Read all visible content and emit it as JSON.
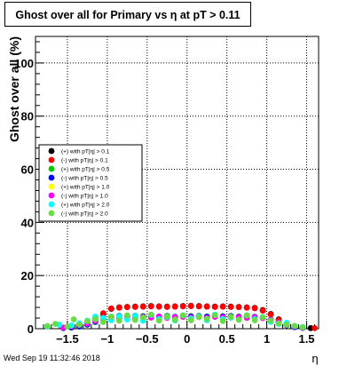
{
  "title": "Ghost over all for Primary vs   η at pT  > 0.11",
  "timestamp": "Wed Sep 19 11:32:46 2018",
  "chart_data": {
    "type": "scatter",
    "title": "Ghost over all for Primary vs   η at pT  > 0.11",
    "xlabel": "η",
    "ylabel": "Ghost over all (%)",
    "xlim": [
      -1.9,
      1.65
    ],
    "ylim": [
      0,
      110
    ],
    "x_ticks": [
      -1.5,
      -1,
      -0.5,
      0,
      0.5,
      1,
      1.5
    ],
    "x_tick_labels": [
      "−1.5",
      "−1",
      "−0.5",
      "0",
      "0.5",
      "1",
      "1.5"
    ],
    "y_ticks": [
      0,
      20,
      40,
      60,
      80,
      100
    ],
    "y_tick_labels": [
      "0",
      "20",
      "40",
      "60",
      "80",
      "100"
    ],
    "grid": true,
    "legend_position": "middle-left",
    "series": [
      {
        "name": "(+) with pT|η| > 0.1",
        "color": "#000000",
        "x": [
          -1.55,
          -1.45,
          -1.35,
          -1.25,
          -1.15,
          -1.05,
          -0.95,
          -0.85,
          -0.75,
          -0.65,
          -0.55,
          -0.45,
          -0.35,
          -0.25,
          -0.15,
          -0.05,
          0.05,
          0.15,
          0.25,
          0.35,
          0.45,
          0.55,
          0.65,
          0.75,
          0.85,
          0.95,
          1.05,
          1.15,
          1.25,
          1.35,
          1.45,
          1.55
        ],
        "y": [
          0.2,
          0.5,
          1.0,
          2.0,
          3.5,
          5.5,
          7.5,
          8.0,
          8.2,
          8.3,
          8.4,
          8.5,
          8.4,
          8.3,
          8.4,
          8.5,
          8.6,
          8.5,
          8.4,
          8.3,
          8.4,
          8.3,
          8.2,
          8.0,
          7.8,
          7.0,
          5.5,
          3.5,
          2.0,
          1.0,
          0.5,
          0.2
        ]
      },
      {
        "name": "(-) with pT|η| > 0.1",
        "color": "#ff0000",
        "x": [
          -1.55,
          -1.45,
          -1.35,
          -1.25,
          -1.15,
          -1.05,
          -0.95,
          -0.85,
          -0.75,
          -0.65,
          -0.55,
          -0.45,
          -0.35,
          -0.25,
          -0.15,
          -0.05,
          0.05,
          0.15,
          0.25,
          0.35,
          0.45,
          0.55,
          0.65,
          0.75,
          0.85,
          0.95,
          1.05,
          1.15,
          1.25,
          1.35,
          1.45,
          1.6
        ],
        "y": [
          0.3,
          0.6,
          1.2,
          2.2,
          3.8,
          5.8,
          7.6,
          7.9,
          8.1,
          8.2,
          8.3,
          8.4,
          8.3,
          8.2,
          8.3,
          8.4,
          8.5,
          8.4,
          8.3,
          8.2,
          8.3,
          8.2,
          8.1,
          7.9,
          7.7,
          6.8,
          5.3,
          3.3,
          1.8,
          0.9,
          0.4,
          0.2
        ]
      },
      {
        "name": "(+) with pT|η| > 0.5",
        "color": "#00cc00",
        "x": [
          -1.55,
          -1.45,
          -1.35,
          -1.25,
          -1.15,
          -1.05,
          -0.95,
          -0.85,
          -0.75,
          -0.65,
          -0.55,
          -0.45,
          -0.35,
          -0.25,
          -0.15,
          -0.05,
          0.05,
          0.15,
          0.25,
          0.35,
          0.45,
          0.55,
          0.65,
          0.75,
          0.85,
          0.95,
          1.05,
          1.15,
          1.25,
          1.35,
          1.45
        ],
        "y": [
          0.2,
          0.4,
          0.8,
          1.5,
          2.5,
          3.5,
          4.5,
          4.8,
          4.6,
          4.9,
          4.7,
          5.0,
          4.6,
          4.8,
          4.5,
          4.9,
          4.7,
          4.8,
          4.6,
          5.0,
          4.7,
          4.8,
          4.6,
          4.7,
          4.5,
          4.2,
          3.4,
          2.4,
          1.4,
          0.7,
          0.3
        ]
      },
      {
        "name": "(-) with pT|η| > 0.5",
        "color": "#0000ff",
        "x": [
          -1.55,
          -1.45,
          -1.35,
          -1.25,
          -1.15,
          -1.05,
          -0.95,
          -0.85,
          -0.75,
          -0.65,
          -0.55,
          -0.45,
          -0.35,
          -0.25,
          -0.15,
          -0.05,
          0.05,
          0.15,
          0.25,
          0.35,
          0.45,
          0.55,
          0.65,
          0.75,
          0.85,
          0.95,
          1.05,
          1.15,
          1.25,
          1.35,
          1.45
        ],
        "y": [
          0.3,
          0.5,
          0.9,
          1.6,
          2.6,
          3.6,
          4.4,
          4.7,
          4.5,
          4.8,
          4.6,
          4.9,
          4.5,
          4.7,
          4.4,
          4.8,
          4.6,
          4.7,
          4.5,
          4.9,
          4.6,
          4.7,
          4.5,
          4.6,
          4.4,
          4.1,
          3.3,
          2.3,
          1.3,
          0.6,
          0.3
        ]
      },
      {
        "name": "(+) with pT|η| > 1.0",
        "color": "#ffff00",
        "x": [
          -1.55,
          -1.45,
          -1.35,
          -1.25,
          -1.15,
          -1.05,
          -0.95,
          -0.85,
          -0.75,
          -0.65,
          -0.55,
          -0.45,
          -0.35,
          -0.25,
          -0.15,
          -0.05,
          0.05,
          0.15,
          0.25,
          0.35,
          0.45,
          0.55,
          0.65,
          0.75,
          0.85,
          0.95,
          1.05,
          1.15,
          1.25,
          1.35,
          1.45
        ],
        "y": [
          0.5,
          1.0,
          1.5,
          2.0,
          3.0,
          3.8,
          4.2,
          4.0,
          4.4,
          3.9,
          4.3,
          4.1,
          4.5,
          4.0,
          4.2,
          4.4,
          4.1,
          4.3,
          4.0,
          4.4,
          4.2,
          4.1,
          4.3,
          4.0,
          4.2,
          3.9,
          3.2,
          2.2,
          1.5,
          1.0,
          0.5
        ]
      },
      {
        "name": "(-) with pT|η| > 1.0",
        "color": "#ff00ff",
        "x": [
          -1.55,
          -1.45,
          -1.35,
          -1.25,
          -1.15,
          -1.05,
          -0.95,
          -0.85,
          -0.75,
          -0.65,
          -0.55,
          -0.45,
          -0.35,
          -0.25,
          -0.15,
          -0.05,
          0.05,
          0.15,
          0.25,
          0.35,
          0.45,
          0.55,
          0.65,
          0.75,
          0.85,
          0.95,
          1.05,
          1.15,
          1.25,
          1.35,
          1.45
        ],
        "y": [
          0.4,
          0.9,
          1.4,
          2.1,
          3.1,
          3.9,
          4.3,
          4.1,
          4.5,
          4.0,
          4.4,
          4.2,
          4.6,
          4.1,
          4.3,
          4.5,
          4.2,
          4.4,
          4.1,
          4.5,
          4.3,
          4.2,
          4.4,
          4.1,
          4.3,
          4.0,
          3.3,
          2.3,
          1.6,
          0.9,
          0.4
        ]
      },
      {
        "name": "(+) with pT|η| > 2.0",
        "color": "#00ffff",
        "x": [
          -1.75,
          -1.6,
          -1.45,
          -1.35,
          -1.25,
          -1.15,
          -1.05,
          -0.95,
          -0.85,
          -0.75,
          -0.65,
          -0.55,
          -0.45,
          -0.35,
          -0.25,
          -0.15,
          -0.05,
          0.05,
          0.15,
          0.25,
          0.35,
          0.45,
          0.55,
          0.65,
          0.75,
          0.85,
          0.95,
          1.05,
          1.15,
          1.25,
          1.35,
          1.45
        ],
        "y": [
          0.8,
          1.5,
          1.2,
          2.0,
          3.0,
          4.5,
          4.0,
          3.2,
          4.6,
          3.5,
          4.8,
          3.0,
          5.2,
          3.6,
          4.4,
          3.1,
          5.0,
          3.8,
          4.6,
          3.2,
          5.3,
          3.6,
          4.2,
          3.4,
          5.0,
          3.6,
          4.4,
          2.6,
          1.8,
          2.2,
          1.0,
          0.6
        ]
      },
      {
        "name": "(-) with pT|η| > 2.0",
        "color": "#66dd44",
        "x": [
          -1.75,
          -1.65,
          -1.5,
          -1.42,
          -1.35,
          -1.25,
          -1.15,
          -1.05,
          -0.95,
          -0.85,
          -0.75,
          -0.65,
          -0.55,
          -0.45,
          -0.35,
          -0.25,
          -0.15,
          -0.05,
          0.05,
          0.15,
          0.25,
          0.35,
          0.45,
          0.55,
          0.65,
          0.75,
          0.85,
          0.95,
          1.05,
          1.15,
          1.25,
          1.35,
          1.45
        ],
        "y": [
          1.0,
          1.8,
          0.8,
          3.5,
          1.5,
          2.8,
          3.6,
          2.5,
          4.5,
          3.0,
          5.0,
          3.3,
          4.2,
          5.3,
          3.1,
          4.6,
          3.4,
          5.0,
          3.2,
          4.4,
          3.7,
          5.1,
          2.9,
          4.5,
          3.4,
          5.0,
          3.2,
          4.3,
          3.0,
          2.0,
          1.5,
          1.0,
          0.5
        ]
      }
    ]
  }
}
